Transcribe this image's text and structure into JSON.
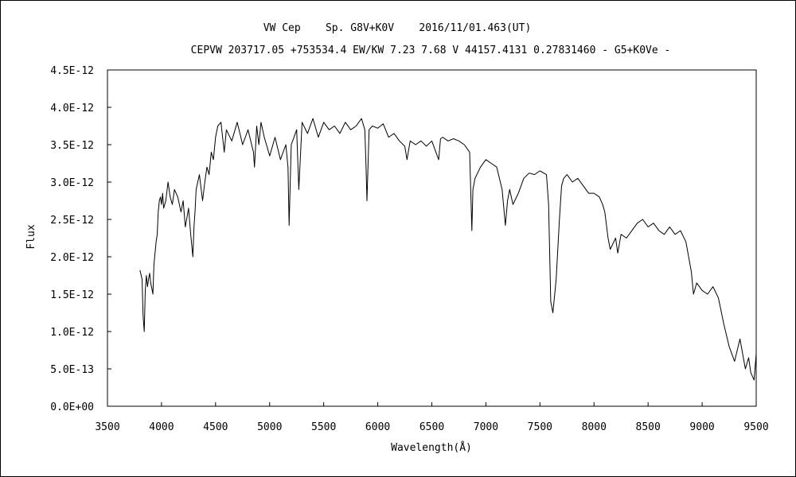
{
  "chart_data": {
    "type": "line",
    "title": "VW Cep    Sp. G8V+K0V    2016/11/01.463(UT)",
    "subtitle": "CEPVW 203717.05 +753534.4 EW/KW 7.23 7.68 V 44157.4131 0.27831460 - G5+K0Ve -",
    "xlabel": "Wavelength(Å)",
    "ylabel": "Flux",
    "xlim": [
      3500,
      9500
    ],
    "ylim": [
      0,
      4.5e-12
    ],
    "xticks": [
      "3500",
      "4000",
      "4500",
      "5000",
      "5500",
      "6000",
      "6500",
      "7000",
      "7500",
      "8000",
      "8500",
      "9000",
      "9500"
    ],
    "yticks": [
      "0.0E+00",
      "5.0E-13",
      "1.0E-12",
      "1.5E-12",
      "2.0E-12",
      "2.5E-12",
      "3.0E-12",
      "3.5E-12",
      "4.0E-12",
      "4.5E-12"
    ],
    "grid": false,
    "series": [
      {
        "color": "#000000",
        "x": [
          3800,
          3820,
          3830,
          3840,
          3850,
          3860,
          3870,
          3880,
          3890,
          3900,
          3910,
          3920,
          3930,
          3940,
          3950,
          3960,
          3970,
          3980,
          3990,
          4000,
          4010,
          4020,
          4040,
          4060,
          4080,
          4100,
          4120,
          4150,
          4180,
          4200,
          4220,
          4250,
          4270,
          4290,
          4300,
          4310,
          4320,
          4350,
          4380,
          4400,
          4420,
          4440,
          4460,
          4480,
          4500,
          4520,
          4550,
          4580,
          4600,
          4650,
          4700,
          4750,
          4800,
          4850,
          4860,
          4880,
          4900,
          4920,
          4950,
          5000,
          5050,
          5100,
          5150,
          5170,
          5180,
          5200,
          5250,
          5270,
          5300,
          5350,
          5400,
          5450,
          5500,
          5550,
          5600,
          5650,
          5700,
          5750,
          5800,
          5850,
          5880,
          5890,
          5900,
          5920,
          5950,
          6000,
          6050,
          6100,
          6150,
          6200,
          6250,
          6270,
          6300,
          6350,
          6400,
          6450,
          6500,
          6550,
          6563,
          6580,
          6600,
          6650,
          6700,
          6750,
          6800,
          6850,
          6870,
          6880,
          6900,
          6950,
          7000,
          7050,
          7100,
          7150,
          7180,
          7200,
          7220,
          7250,
          7300,
          7350,
          7400,
          7450,
          7500,
          7560,
          7580,
          7600,
          7620,
          7650,
          7680,
          7700,
          7720,
          7750,
          7800,
          7850,
          7900,
          7950,
          8000,
          8050,
          8080,
          8100,
          8130,
          8150,
          8200,
          8220,
          8250,
          8300,
          8350,
          8400,
          8450,
          8500,
          8550,
          8600,
          8650,
          8700,
          8750,
          8800,
          8850,
          8900,
          8920,
          8950,
          9000,
          9050,
          9100,
          9150,
          9200,
          9250,
          9300,
          9350,
          9400,
          9430,
          9450,
          9480,
          9500
        ],
        "values": [
          1.82e-12,
          1.7e-12,
          1.2e-12,
          1e-12,
          1.55e-12,
          1.75e-12,
          1.6e-12,
          1.7e-12,
          1.78e-12,
          1.65e-12,
          1.58e-12,
          1.5e-12,
          1.9e-12,
          2.05e-12,
          2.2e-12,
          2.3e-12,
          2.6e-12,
          2.75e-12,
          2.8e-12,
          2.7e-12,
          2.85e-12,
          2.65e-12,
          2.75e-12,
          3e-12,
          2.8e-12,
          2.7e-12,
          2.9e-12,
          2.8e-12,
          2.6e-12,
          2.75e-12,
          2.4e-12,
          2.65e-12,
          2.3e-12,
          2e-12,
          2.4e-12,
          2.6e-12,
          2.9e-12,
          3.1e-12,
          2.75e-12,
          3e-12,
          3.2e-12,
          3.1e-12,
          3.4e-12,
          3.3e-12,
          3.6e-12,
          3.75e-12,
          3.8e-12,
          3.4e-12,
          3.7e-12,
          3.55e-12,
          3.8e-12,
          3.5e-12,
          3.7e-12,
          3.4e-12,
          3.2e-12,
          3.75e-12,
          3.5e-12,
          3.8e-12,
          3.6e-12,
          3.35e-12,
          3.6e-12,
          3.3e-12,
          3.5e-12,
          3.2e-12,
          2.42e-12,
          3.5e-12,
          3.7e-12,
          2.9e-12,
          3.8e-12,
          3.65e-12,
          3.85e-12,
          3.6e-12,
          3.8e-12,
          3.7e-12,
          3.75e-12,
          3.65e-12,
          3.8e-12,
          3.7e-12,
          3.75e-12,
          3.85e-12,
          3.7e-12,
          3.3e-12,
          2.75e-12,
          3.7e-12,
          3.75e-12,
          3.72e-12,
          3.78e-12,
          3.6e-12,
          3.65e-12,
          3.55e-12,
          3.48e-12,
          3.3e-12,
          3.55e-12,
          3.5e-12,
          3.55e-12,
          3.48e-12,
          3.55e-12,
          3.35e-12,
          3.3e-12,
          3.58e-12,
          3.6e-12,
          3.55e-12,
          3.58e-12,
          3.55e-12,
          3.5e-12,
          3.4e-12,
          2.35e-12,
          2.9e-12,
          3.05e-12,
          3.2e-12,
          3.3e-12,
          3.25e-12,
          3.2e-12,
          2.9e-12,
          2.42e-12,
          2.75e-12,
          2.9e-12,
          2.7e-12,
          2.85e-12,
          3.05e-12,
          3.12e-12,
          3.1e-12,
          3.15e-12,
          3.1e-12,
          2.7e-12,
          1.4e-12,
          1.25e-12,
          1.7e-12,
          2.5e-12,
          2.95e-12,
          3.05e-12,
          3.1e-12,
          3e-12,
          3.05e-12,
          2.95e-12,
          2.85e-12,
          2.85e-12,
          2.8e-12,
          2.7e-12,
          2.6e-12,
          2.25e-12,
          2.1e-12,
          2.25e-12,
          2.05e-12,
          2.3e-12,
          2.25e-12,
          2.35e-12,
          2.45e-12,
          2.5e-12,
          2.4e-12,
          2.45e-12,
          2.35e-12,
          2.3e-12,
          2.4e-12,
          2.3e-12,
          2.35e-12,
          2.2e-12,
          1.8e-12,
          1.5e-12,
          1.65e-12,
          1.55e-12,
          1.5e-12,
          1.6e-12,
          1.45e-12,
          1.1e-12,
          8e-13,
          6e-13,
          9e-13,
          5e-13,
          6.5e-13,
          4.5e-13,
          3.5e-13,
          7e-13
        ]
      }
    ]
  }
}
